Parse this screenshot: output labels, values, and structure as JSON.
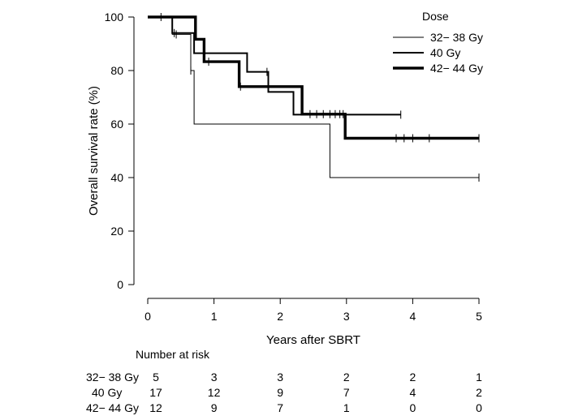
{
  "chart_data": {
    "type": "line",
    "subtype": "kaplan-meier step plot",
    "xlabel": "Years after SBRT",
    "ylabel": "Overall survival rate (%)",
    "xlim": [
      0,
      5
    ],
    "ylim": [
      0,
      100
    ],
    "x_ticks": [
      0,
      1,
      2,
      3,
      4,
      5
    ],
    "y_ticks": [
      0,
      20,
      40,
      60,
      80,
      100
    ],
    "legend": {
      "title": "Dose",
      "position": "top-right",
      "entries": [
        {
          "label": "32− 38 Gy",
          "series": "32-38"
        },
        {
          "label": "40 Gy",
          "series": "40"
        },
        {
          "label": "42− 44 Gy",
          "series": "42-44"
        }
      ]
    },
    "series": [
      {
        "name": "32− 38 Gy",
        "key": "32-38",
        "line_weight": "thin",
        "steps": [
          [
            0,
            100
          ],
          [
            0.37,
            100
          ],
          [
            0.37,
            93.5
          ],
          [
            0.65,
            93.5
          ],
          [
            0.65,
            80
          ],
          [
            0.7,
            80
          ],
          [
            0.7,
            60
          ],
          [
            2.75,
            60
          ],
          [
            2.75,
            40
          ],
          [
            5.0,
            40
          ]
        ],
        "censor_x": [
          0.43,
          0.65,
          5.0
        ]
      },
      {
        "name": "40 Gy",
        "key": "40",
        "line_weight": "medium",
        "steps": [
          [
            0,
            100
          ],
          [
            0.37,
            100
          ],
          [
            0.37,
            94
          ],
          [
            0.7,
            94
          ],
          [
            0.7,
            86.5
          ],
          [
            1.5,
            86.5
          ],
          [
            1.5,
            79.5
          ],
          [
            1.82,
            79.5
          ],
          [
            1.82,
            72
          ],
          [
            2.2,
            72
          ],
          [
            2.2,
            63.5
          ],
          [
            3.82,
            63.5
          ]
        ],
        "censor_x": [
          0.4,
          1.8,
          3.82
        ]
      },
      {
        "name": "42− 44 Gy",
        "key": "42-44",
        "line_weight": "thick",
        "steps": [
          [
            0,
            100
          ],
          [
            0.72,
            100
          ],
          [
            0.72,
            91.7
          ],
          [
            0.85,
            91.7
          ],
          [
            0.85,
            83.3
          ],
          [
            1.38,
            83.3
          ],
          [
            1.38,
            74
          ],
          [
            2.33,
            74
          ],
          [
            2.33,
            63.7
          ],
          [
            2.98,
            63.7
          ],
          [
            2.98,
            54.7
          ],
          [
            5.0,
            54.7
          ]
        ],
        "censor_x": [
          0.2,
          0.92,
          1.4,
          2.45,
          2.55,
          2.65,
          2.75,
          2.83,
          2.9,
          2.95,
          3.75,
          3.87,
          4.0,
          4.25,
          5.0
        ]
      }
    ],
    "risk_table": {
      "title": "Number at risk",
      "rows": [
        {
          "label": "32− 38 Gy",
          "counts": [
            "5",
            "3",
            "3",
            "2",
            "2",
            "1"
          ]
        },
        {
          "label": "40 Gy",
          "counts": [
            "17",
            "12",
            "9",
            "7",
            "4",
            "2"
          ]
        },
        {
          "label": "42− 44 Gy",
          "counts": [
            "12",
            "9",
            "7",
            "1",
            "0",
            "0"
          ]
        }
      ]
    }
  }
}
